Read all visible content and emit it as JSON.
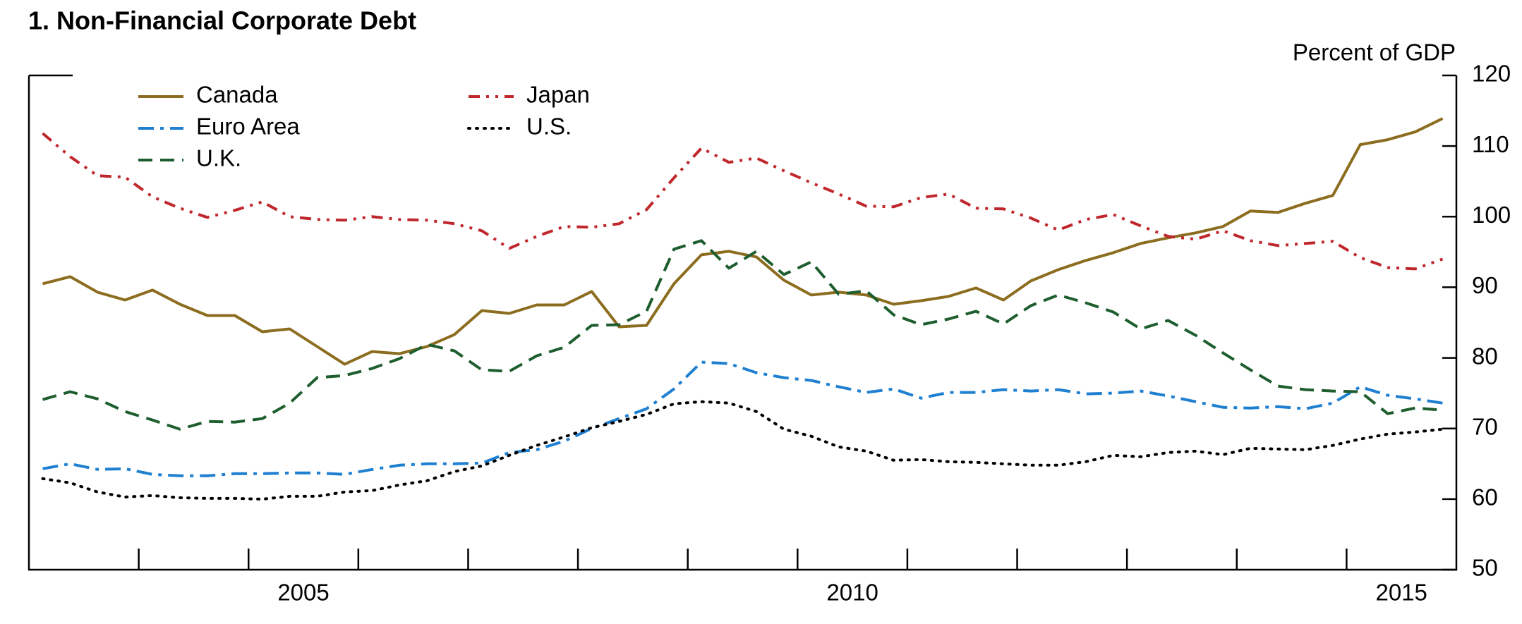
{
  "chart_data": {
    "type": "line",
    "title": "1. Non-Financial Corporate Debt",
    "y_axis_label": "Percent of GDP",
    "y_axis_side": "right",
    "x": [
      2003.125,
      2003.375,
      2003.625,
      2003.875,
      2004.125,
      2004.375,
      2004.625,
      2004.875,
      2005.125,
      2005.375,
      2005.625,
      2005.875,
      2006.125,
      2006.375,
      2006.625,
      2006.875,
      2007.125,
      2007.375,
      2007.625,
      2007.875,
      2008.125,
      2008.375,
      2008.625,
      2008.875,
      2009.125,
      2009.375,
      2009.625,
      2009.875,
      2010.125,
      2010.375,
      2010.625,
      2010.875,
      2011.125,
      2011.375,
      2011.625,
      2011.875,
      2012.125,
      2012.375,
      2012.625,
      2012.875,
      2013.125,
      2013.375,
      2013.625,
      2013.875,
      2014.125,
      2014.375,
      2014.625,
      2014.875,
      2015.125,
      2015.375,
      2015.625,
      2015.875
    ],
    "xlim": [
      2003,
      2016
    ],
    "xticks": [
      {
        "value": 2005.5,
        "label": "2005"
      },
      {
        "value": 2010.5,
        "label": "2010"
      },
      {
        "value": 2015.5,
        "label": "2015"
      }
    ],
    "x_minor_ticks": [
      2004,
      2005,
      2006,
      2007,
      2008,
      2009,
      2010,
      2011,
      2012,
      2013,
      2014,
      2015
    ],
    "ylim": [
      50,
      120
    ],
    "yticks": [
      50,
      60,
      70,
      80,
      90,
      100,
      110,
      120
    ],
    "series": [
      {
        "name": "Canada",
        "color": "#8c6d1f",
        "style": "solid",
        "values": [
          90.5,
          91.5,
          89.3,
          88.2,
          89.6,
          87.6,
          86.0,
          86.0,
          83.7,
          84.1,
          81.6,
          79.1,
          80.9,
          80.6,
          81.6,
          83.3,
          86.7,
          86.3,
          87.5,
          87.5,
          89.4,
          84.4,
          84.6,
          90.5,
          94.6,
          95.1,
          94.3,
          91.0,
          88.9,
          89.3,
          88.9,
          87.6,
          88.1,
          88.7,
          89.9,
          88.2,
          90.9,
          92.5,
          93.8,
          94.9,
          96.2,
          97.0,
          97.7,
          98.6,
          100.8,
          100.6,
          101.9,
          103.0,
          110.2,
          110.9,
          112.0,
          113.9
        ]
      },
      {
        "name": "Euro Area",
        "color": "#1f7fd0",
        "style": "dashdot",
        "values": [
          64.3,
          65,
          64.2,
          64.3,
          63.5,
          63.3,
          63.3,
          63.6,
          63.6,
          63.7,
          63.7,
          63.5,
          64.2,
          64.8,
          65,
          65,
          65.1,
          66.6,
          67,
          68.2,
          70,
          71.4,
          72.8,
          75.6,
          79.4,
          79.2,
          77.9,
          77.2,
          76.8,
          75.9,
          75.1,
          75.6,
          74.3,
          75.1,
          75.1,
          75.5,
          75.3,
          75.5,
          74.9,
          75,
          75.3,
          74.6,
          73.8,
          73,
          72.9,
          73.1,
          72.8,
          73.6,
          75.9,
          74.7,
          74.2,
          73.6
        ]
      },
      {
        "name": "U.K.",
        "color": "#1e5e2e",
        "style": "dashed",
        "values": [
          74.1,
          75.2,
          74.2,
          72.4,
          71.2,
          69.9,
          71.0,
          70.9,
          71.4,
          73.6,
          77.2,
          77.5,
          78.5,
          79.9,
          81.9,
          81.0,
          78.3,
          78.1,
          80.3,
          81.5,
          84.6,
          84.7,
          86.6,
          95.4,
          96.6,
          92.7,
          95.1,
          91.8,
          93.6,
          89.0,
          89.5,
          86.1,
          84.7,
          85.5,
          86.6,
          84.8,
          87.4,
          88.9,
          87.8,
          86.5,
          84.1,
          85.3,
          83.2,
          80.7,
          78.3,
          76,
          75.5,
          75.3,
          75.2,
          72.1,
          72.9,
          72.6
        ]
      },
      {
        "name": "Japan",
        "color": "#c0272d",
        "style": "dashdotdot",
        "values": [
          111.8,
          108.5,
          105.8,
          105.6,
          102.8,
          101.2,
          99.9,
          100.9,
          102.1,
          100,
          99.6,
          99.5,
          100,
          99.6,
          99.5,
          99,
          98,
          95.5,
          97.2,
          98.6,
          98.5,
          99,
          101,
          105.5,
          109.7,
          107.7,
          108.3,
          106.5,
          104.8,
          103.2,
          101.5,
          101.4,
          102.7,
          103.2,
          101.2,
          101.1,
          99.8,
          98.1,
          99.6,
          100.3,
          98.7,
          97.2,
          96.8,
          98,
          96.6,
          95.9,
          96.2,
          96.5,
          94.2,
          92.8,
          92.6,
          94
        ]
      },
      {
        "name": "U.S.",
        "color": "#000000",
        "style": "dotted",
        "values": [
          62.9,
          62.3,
          61,
          60.3,
          60.5,
          60.2,
          60.1,
          60.1,
          60,
          60.4,
          60.4,
          61,
          61.2,
          62,
          62.6,
          63.9,
          64.7,
          66.2,
          67.6,
          68.8,
          70.1,
          71,
          72,
          73.5,
          73.8,
          73.6,
          72.4,
          69.9,
          68.9,
          67.4,
          66.8,
          65.5,
          65.6,
          65.3,
          65.2,
          65,
          64.8,
          64.8,
          65.3,
          66.2,
          66,
          66.6,
          66.8,
          66.3,
          67.2,
          67.1,
          67,
          67.6,
          68.5,
          69.2,
          69.5,
          69.9
        ]
      }
    ]
  }
}
